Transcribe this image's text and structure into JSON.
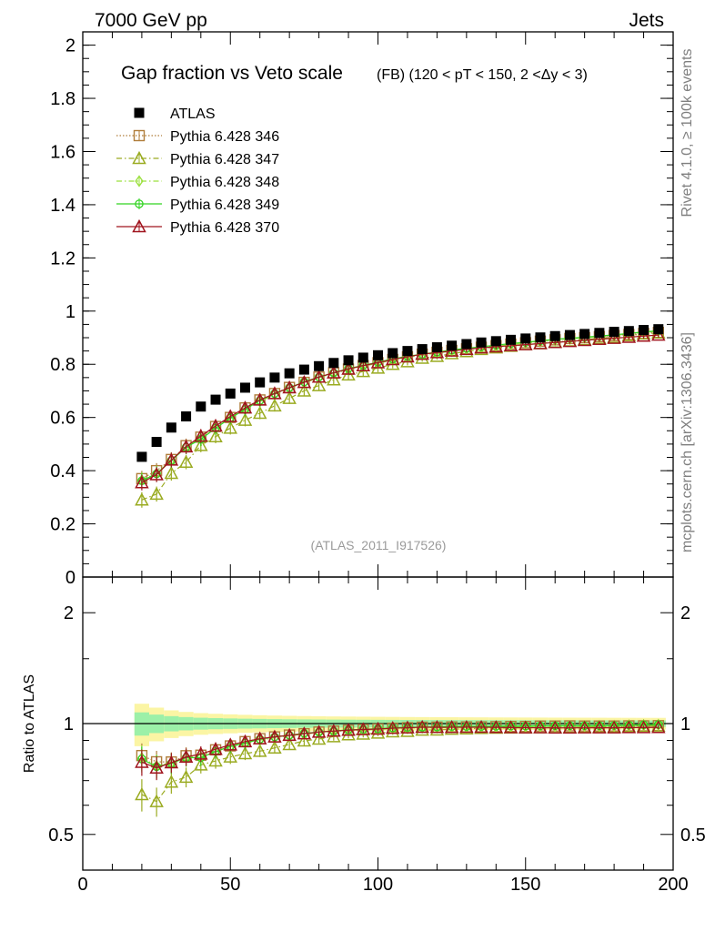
{
  "header": {
    "energy_label": "7000 GeV pp",
    "process_label": "Jets"
  },
  "side_labels": {
    "rivet": "Rivet 4.1.0, ≥ 100k events",
    "mcplots": "mcplots.cern.ch [arXiv:1306.3436]"
  },
  "chart_data": {
    "type": "scatter",
    "title": "Gap fraction vs Veto scale",
    "subtitle": "(FB) (120 < pT < 150, 2 <Δy < 3)",
    "analysis_label": "(ATLAS_2011_I917526)",
    "main_panel": {
      "xlim": [
        0,
        200
      ],
      "ylim": [
        0,
        2.05
      ],
      "ytick_labels": [
        "0",
        "0.2",
        "0.4",
        "0.6",
        "0.8",
        "1",
        "1.2",
        "1.4",
        "1.6",
        "1.8",
        "2"
      ]
    },
    "ratio_panel": {
      "ylabel": "Ratio to ATLAS",
      "ylim": [
        0.4,
        2.5
      ],
      "log_scale": true,
      "ytick_labels": [
        "0.5",
        "1",
        "2"
      ],
      "ref_line": 1
    },
    "xtick_labels": [
      "0",
      "50",
      "100",
      "150",
      "200"
    ],
    "x": [
      20,
      25,
      30,
      35,
      40,
      45,
      50,
      55,
      60,
      65,
      70,
      75,
      80,
      85,
      90,
      95,
      100,
      105,
      110,
      115,
      120,
      125,
      130,
      135,
      140,
      145,
      150,
      155,
      160,
      165,
      170,
      175,
      180,
      185,
      190,
      195
    ],
    "series": [
      {
        "name": "ATLAS",
        "color": "#000000",
        "marker": "square-filled",
        "values": [
          0.452,
          0.508,
          0.562,
          0.604,
          0.641,
          0.667,
          0.69,
          0.712,
          0.732,
          0.75,
          0.766,
          0.78,
          0.793,
          0.805,
          0.815,
          0.825,
          0.834,
          0.842,
          0.85,
          0.857,
          0.864,
          0.87,
          0.876,
          0.882,
          0.887,
          0.892,
          0.897,
          0.901,
          0.906,
          0.91,
          0.914,
          0.918,
          0.922,
          0.925,
          0.929,
          0.932
        ]
      },
      {
        "name": "Pythia 6.428 346",
        "color": "#b07d3a",
        "marker": "square-open",
        "line": "dotted",
        "values": [
          0.37,
          0.4,
          0.442,
          0.494,
          0.526,
          0.566,
          0.6,
          0.636,
          0.666,
          0.69,
          0.713,
          0.732,
          0.752,
          0.768,
          0.782,
          0.795,
          0.806,
          0.818,
          0.828,
          0.838,
          0.845,
          0.852,
          0.858,
          0.864,
          0.87,
          0.876,
          0.881,
          0.887,
          0.892,
          0.897,
          0.9,
          0.904,
          0.908,
          0.912,
          0.916,
          0.92
        ]
      },
      {
        "name": "Pythia 6.428 347",
        "color": "#9aab21",
        "marker": "triangle-open",
        "line": "dashdot",
        "values": [
          0.29,
          0.312,
          0.39,
          0.432,
          0.495,
          0.528,
          0.56,
          0.59,
          0.616,
          0.644,
          0.672,
          0.7,
          0.72,
          0.742,
          0.76,
          0.773,
          0.786,
          0.8,
          0.81,
          0.823,
          0.83,
          0.84,
          0.848,
          0.856,
          0.862,
          0.868,
          0.874,
          0.878,
          0.884,
          0.888,
          0.893,
          0.898,
          0.902,
          0.908,
          0.914,
          0.918
        ]
      },
      {
        "name": "Pythia 6.428 348",
        "color": "#9be03e",
        "marker": "diamond-open",
        "line": "dashdot",
        "values": [
          0.365,
          0.39,
          0.44,
          0.49,
          0.52,
          0.56,
          0.598,
          0.632,
          0.66,
          0.686,
          0.71,
          0.73,
          0.75,
          0.766,
          0.78,
          0.792,
          0.804,
          0.815,
          0.826,
          0.835,
          0.842,
          0.85,
          0.856,
          0.862,
          0.868,
          0.874,
          0.88,
          0.885,
          0.89,
          0.895,
          0.9,
          0.904,
          0.908,
          0.914,
          0.92,
          0.925
        ]
      },
      {
        "name": "Pythia 6.428 349",
        "color": "#32d422",
        "marker": "circle-cross",
        "line": "solid",
        "values": [
          0.362,
          0.388,
          0.438,
          0.488,
          0.518,
          0.56,
          0.598,
          0.63,
          0.664,
          0.69,
          0.712,
          0.734,
          0.752,
          0.768,
          0.784,
          0.796,
          0.808,
          0.82,
          0.83,
          0.838,
          0.846,
          0.854,
          0.86,
          0.866,
          0.872,
          0.878,
          0.883,
          0.888,
          0.894,
          0.898,
          0.902,
          0.906,
          0.911,
          0.916,
          0.922,
          0.926
        ]
      },
      {
        "name": "Pythia 6.428 370",
        "color": "#a0141e",
        "marker": "triangle-open",
        "line": "solid",
        "values": [
          0.355,
          0.385,
          0.44,
          0.49,
          0.53,
          0.568,
          0.604,
          0.636,
          0.666,
          0.69,
          0.712,
          0.732,
          0.752,
          0.768,
          0.782,
          0.795,
          0.806,
          0.818,
          0.828,
          0.838,
          0.844,
          0.85,
          0.856,
          0.862,
          0.866,
          0.87,
          0.874,
          0.878,
          0.882,
          0.886,
          0.89,
          0.894,
          0.898,
          0.902,
          0.906,
          0.91
        ]
      }
    ]
  }
}
